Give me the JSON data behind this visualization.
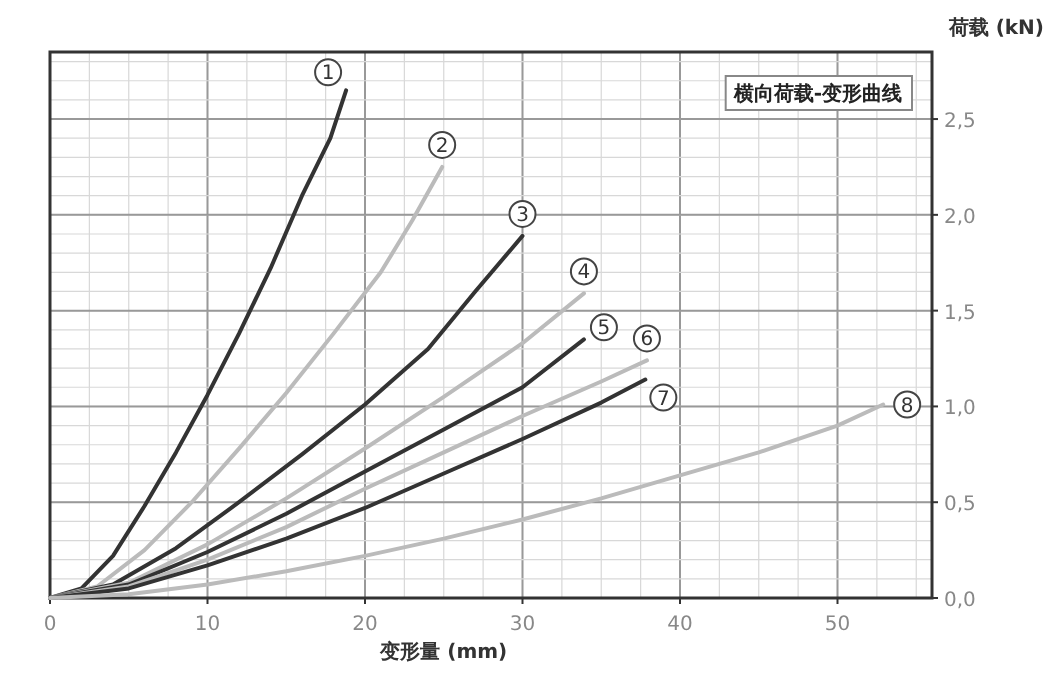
{
  "chart_data": {
    "type": "line",
    "title": "横向荷载-变形曲线",
    "xlabel": "变形量 (mm)",
    "ylabel": "荷载 (kN)",
    "xlim": [
      0,
      56
    ],
    "ylim": [
      0,
      2.85
    ],
    "xticks": [
      0,
      10,
      20,
      30,
      40,
      50
    ],
    "yticks": [
      {
        "value": 0,
        "label": "0,0"
      },
      {
        "value": 0.5,
        "label": "0,5"
      },
      {
        "value": 1,
        "label": "1,0"
      },
      {
        "value": 1.5,
        "label": "1,5"
      },
      {
        "value": 2,
        "label": "2,0"
      },
      {
        "value": 2.5,
        "label": "2,5"
      }
    ],
    "grid": true,
    "legend": false,
    "marker": "none",
    "line_style": "solid",
    "series": [
      {
        "name": "1",
        "color": "#333333",
        "x": [
          0,
          2,
          4,
          6,
          8,
          10,
          12,
          14,
          16,
          17.8,
          18.8
        ],
        "values": [
          0,
          0.05,
          0.22,
          0.48,
          0.76,
          1.06,
          1.38,
          1.72,
          2.1,
          2.4,
          2.65
        ]
      },
      {
        "name": "2",
        "color": "#bbbbbb",
        "x": [
          0,
          3,
          6,
          9,
          12,
          15,
          18,
          21,
          23,
          24.9
        ],
        "values": [
          0,
          0.06,
          0.25,
          0.5,
          0.78,
          1.07,
          1.38,
          1.7,
          1.97,
          2.25
        ]
      },
      {
        "name": "3",
        "color": "#333333",
        "x": [
          0,
          4,
          8,
          12,
          16,
          20,
          24,
          27,
          30
        ],
        "values": [
          0,
          0.07,
          0.26,
          0.5,
          0.75,
          1.01,
          1.3,
          1.6,
          1.89
        ]
      },
      {
        "name": "4",
        "color": "#bbbbbb",
        "x": [
          0,
          5,
          10,
          15,
          20,
          25,
          30,
          33.9
        ],
        "values": [
          0,
          0.08,
          0.28,
          0.52,
          0.78,
          1.05,
          1.33,
          1.59
        ]
      },
      {
        "name": "5",
        "color": "#333333",
        "x": [
          0,
          5,
          10,
          15,
          20,
          25,
          30,
          33.9
        ],
        "values": [
          0,
          0.07,
          0.24,
          0.44,
          0.66,
          0.88,
          1.1,
          1.35
        ]
      },
      {
        "name": "6",
        "color": "#bbbbbb",
        "x": [
          0,
          5,
          10,
          15,
          20,
          25,
          30,
          35,
          37.9
        ],
        "values": [
          0,
          0.06,
          0.2,
          0.37,
          0.57,
          0.76,
          0.95,
          1.13,
          1.24
        ]
      },
      {
        "name": "7",
        "color": "#333333",
        "x": [
          0,
          5,
          10,
          15,
          20,
          25,
          30,
          35,
          37.8
        ],
        "values": [
          0,
          0.05,
          0.17,
          0.31,
          0.47,
          0.65,
          0.83,
          1.02,
          1.14
        ]
      },
      {
        "name": "8",
        "color": "#bbbbbb",
        "x": [
          0,
          5,
          10,
          15,
          20,
          25,
          30,
          35,
          40,
          45,
          50,
          52.9
        ],
        "values": [
          0,
          0.02,
          0.07,
          0.14,
          0.22,
          0.31,
          0.41,
          0.52,
          0.64,
          0.76,
          0.9,
          1.01
        ]
      }
    ]
  }
}
